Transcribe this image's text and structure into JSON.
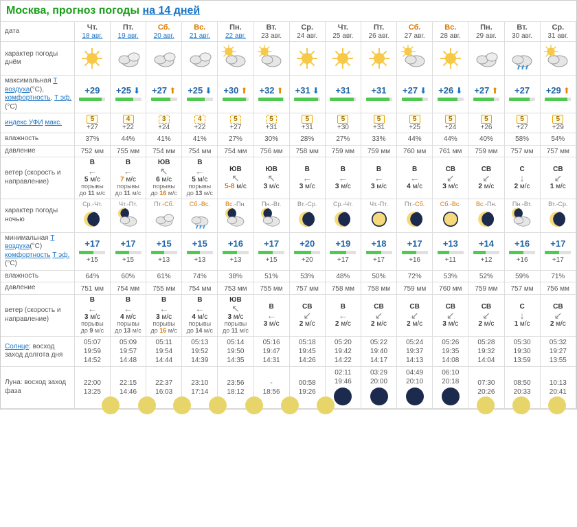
{
  "header": {
    "city": "Москва, прогноз погоды",
    "link_text": "на 14 дней"
  },
  "colors": {
    "accent_green": "#1a9e1a",
    "link_blue": "#1a75c6",
    "weekend_orange": "#d97700",
    "temp_blue": "#2265a8",
    "border": "#dddddd",
    "uvi_border": "#e2a600",
    "uvi_bg": "#fffbe6"
  },
  "row_labels": {
    "date": "дата",
    "weather_day": "характер погоды днём",
    "tmax": "максимальная <a>Т воздуха</a>(°C), <a>комфортность</a>, <a>Т эф.</a>(°C)",
    "uvi": "<a>индекс УФИ</a> <a>макс.</a>",
    "humidity": "влажность",
    "pressure": "давление",
    "wind": "ветер (скорость и направление)",
    "weather_night": "характер погоды ночью",
    "tmin": "минимальная <a>Т воздуха</a>(°C) <a>комфортность</a> <a>Т эф.</a>(°C)",
    "sun": "<a>Солнце</a>: восход заход долгота дня",
    "moon": "Луна: восход заход фаза"
  },
  "days": [
    {
      "abbr": "Чт.",
      "date": "18 авг.",
      "weekend": false,
      "linked": true,
      "icon_day": "sunny",
      "tmax": "+29",
      "tmax_arrow": "",
      "bar_day": 85,
      "uvi": "5",
      "uvi_dashed": false,
      "teff_day": "+27",
      "hum_day": "37%",
      "press_day": "752 мм",
      "wind_dir_day": "В",
      "wind_arrow_day": "←",
      "wind_speed_day": "5",
      "gust_day": "11",
      "night_label": "Ср.-Чт.",
      "icon_night": "clear-night",
      "tmin": "+17",
      "bar_night": 55,
      "teff_night": "+15",
      "hum_night": "64%",
      "press_night": "751 мм",
      "wind_dir_night": "В",
      "wind_arrow_night": "←",
      "wind_speed_night": "3",
      "gust_night": "9",
      "sun_rise": "05:07",
      "sun_set": "19:59",
      "day_len": "14:52",
      "moon_rise": "22:00",
      "moon_set": "13:25",
      "moon_phase": "wnc"
    },
    {
      "abbr": "Пт.",
      "date": "19 авг.",
      "weekend": false,
      "linked": true,
      "icon_day": "cloudy",
      "tmax": "+25",
      "tmax_arrow": "down",
      "bar_day": 70,
      "uvi": "4",
      "uvi_dashed": false,
      "teff_day": "+22",
      "hum_day": "44%",
      "press_day": "755 мм",
      "wind_dir_day": "В",
      "wind_arrow_day": "←",
      "wind_speed_day": "7",
      "wind_hl": true,
      "gust_day": "11",
      "night_label": "Чт.-Пт.",
      "icon_night": "partly-cloudy-night",
      "tmin": "+17",
      "bar_night": 55,
      "teff_night": "+15",
      "hum_night": "60%",
      "press_night": "754 мм",
      "wind_dir_night": "В",
      "wind_arrow_night": "←",
      "wind_speed_night": "4",
      "gust_night": "13",
      "sun_rise": "05:09",
      "sun_set": "19:57",
      "day_len": "14:48",
      "moon_rise": "22:15",
      "moon_set": "14:46",
      "moon_phase": "wnc"
    },
    {
      "abbr": "Сб.",
      "date": "20 авг.",
      "weekend": true,
      "linked": true,
      "icon_day": "cloudy",
      "tmax": "+27",
      "tmax_arrow": "up",
      "bar_day": 75,
      "uvi": "3",
      "uvi_dashed": true,
      "teff_day": "+24",
      "hum_day": "41%",
      "press_day": "754 мм",
      "wind_dir_day": "ЮВ",
      "wind_arrow_day": "↖",
      "wind_speed_day": "6",
      "gust_day": "16",
      "gust_hl": true,
      "night_label": "Пт.-Сб.",
      "icon_night": "overcast",
      "tmin": "+15",
      "bar_night": 50,
      "teff_night": "+13",
      "hum_night": "61%",
      "press_night": "755 мм",
      "wind_dir_night": "В",
      "wind_arrow_night": "←",
      "wind_speed_night": "3",
      "gust_night": "16",
      "gust_night_hl": true,
      "sun_rise": "05:11",
      "sun_set": "19:54",
      "day_len": "14:44",
      "moon_rise": "22:37",
      "moon_set": "16:03",
      "moon_phase": "lq"
    },
    {
      "abbr": "Вс.",
      "date": "21 авг.",
      "weekend": true,
      "linked": true,
      "icon_day": "cloudy",
      "tmax": "+25",
      "tmax_arrow": "down",
      "bar_day": 70,
      "uvi": "4",
      "uvi_dashed": true,
      "teff_day": "+22",
      "hum_day": "41%",
      "press_day": "754 мм",
      "wind_dir_day": "В",
      "wind_arrow_day": "←",
      "wind_speed_day": "5",
      "gust_day": "13",
      "night_label": "Сб.-Вс.",
      "icon_night": "rain",
      "tmin": "+15",
      "bar_night": 50,
      "teff_night": "+13",
      "hum_night": "74%",
      "press_night": "754 мм",
      "wind_dir_night": "В",
      "wind_arrow_night": "←",
      "wind_speed_night": "4",
      "gust_night": "14",
      "sun_rise": "05:13",
      "sun_set": "19:52",
      "day_len": "14:39",
      "moon_rise": "23:10",
      "moon_set": "17:14",
      "moon_phase": "lq"
    },
    {
      "abbr": "Пн.",
      "date": "22 авг.",
      "weekend": false,
      "linked": true,
      "icon_day": "partly-cloudy",
      "tmax": "+30",
      "tmax_arrow": "up",
      "bar_day": 90,
      "uvi": "5",
      "uvi_dashed": true,
      "teff_day": "+27",
      "hum_day": "27%",
      "press_day": "754 мм",
      "wind_dir_day": "ЮВ",
      "wind_arrow_day": "↖",
      "wind_speed_day": "5-8",
      "wind_hl": true,
      "gust_day": "",
      "night_label": "Вс.-Пн.",
      "icon_night": "partly-cloudy-night",
      "tmin": "+16",
      "bar_night": 55,
      "teff_night": "+13",
      "hum_night": "38%",
      "press_night": "753 мм",
      "wind_dir_night": "ЮВ",
      "wind_arrow_night": "↖",
      "wind_speed_night": "3",
      "gust_night": "11",
      "sun_rise": "05:14",
      "sun_set": "19:50",
      "day_len": "14:35",
      "moon_rise": "23:56",
      "moon_set": "18:12",
      "moon_phase": "wnc"
    },
    {
      "abbr": "Вт.",
      "date": "23 авг.",
      "weekend": false,
      "linked": false,
      "icon_day": "partly-cloudy",
      "tmax": "+32",
      "tmax_arrow": "up",
      "bar_day": 95,
      "uvi": "5",
      "uvi_dashed": true,
      "teff_day": "+31",
      "hum_day": "30%",
      "press_day": "756 мм",
      "wind_dir_day": "ЮВ",
      "wind_arrow_day": "↖",
      "wind_speed_day": "3",
      "gust_day": "",
      "night_label": "Пн.-Вт.",
      "icon_night": "partly-cloudy-night",
      "tmin": "+17",
      "bar_night": 55,
      "teff_night": "+15",
      "hum_night": "51%",
      "press_night": "755 мм",
      "wind_dir_night": "В",
      "wind_arrow_night": "←",
      "wind_speed_night": "3",
      "gust_night": "",
      "sun_rise": "05:16",
      "sun_set": "19:47",
      "day_len": "14:31",
      "moon_rise": "-",
      "moon_set": "18:56",
      "moon_phase": "wnc"
    },
    {
      "abbr": "Ср.",
      "date": "24 авг.",
      "weekend": false,
      "linked": false,
      "icon_day": "sunny",
      "tmax": "+31",
      "tmax_arrow": "down",
      "bar_day": 92,
      "uvi": "5",
      "uvi_dashed": false,
      "teff_day": "+31",
      "hum_day": "28%",
      "press_day": "758 мм",
      "wind_dir_day": "В",
      "wind_arrow_day": "←",
      "wind_speed_day": "3",
      "gust_day": "",
      "night_label": "Вт.-Ср.",
      "icon_night": "clear-night",
      "tmin": "+20",
      "bar_night": 65,
      "teff_night": "+20",
      "hum_night": "53%",
      "press_night": "757 мм",
      "wind_dir_night": "СВ",
      "wind_arrow_night": "↙",
      "wind_speed_night": "2",
      "gust_night": "",
      "sun_rise": "05:18",
      "sun_set": "19:45",
      "day_len": "14:26",
      "moon_rise": "00:58",
      "moon_set": "19:26",
      "moon_phase": "wnc"
    },
    {
      "abbr": "Чт.",
      "date": "25 авг.",
      "weekend": false,
      "linked": false,
      "icon_day": "sunny",
      "tmax": "+31",
      "tmax_arrow": "",
      "bar_day": 92,
      "uvi": "5",
      "uvi_dashed": false,
      "teff_day": "+30",
      "hum_day": "27%",
      "press_day": "759 мм",
      "wind_dir_day": "В",
      "wind_arrow_day": "←",
      "wind_speed_day": "3",
      "gust_day": "",
      "night_label": "Ср.-Чт.",
      "icon_night": "clear-night",
      "tmin": "+19",
      "bar_night": 62,
      "teff_night": "+17",
      "hum_night": "48%",
      "press_night": "758 мм",
      "wind_dir_night": "В",
      "wind_arrow_night": "←",
      "wind_speed_night": "2",
      "gust_night": "",
      "sun_rise": "05:20",
      "sun_set": "19:42",
      "day_len": "14:22",
      "moon_rise": "02:11",
      "moon_set": "19:46",
      "moon_phase": "new"
    },
    {
      "abbr": "Пт.",
      "date": "26 авг.",
      "weekend": false,
      "linked": false,
      "icon_day": "sunny",
      "tmax": "+31",
      "tmax_arrow": "",
      "bar_day": 92,
      "uvi": "5",
      "uvi_dashed": false,
      "teff_day": "+31",
      "hum_day": "33%",
      "press_day": "759 мм",
      "wind_dir_day": "В",
      "wind_arrow_day": "←",
      "wind_speed_day": "3",
      "gust_day": "",
      "night_label": "Чт.-Пт.",
      "icon_night": "clear-night-full",
      "tmin": "+18",
      "bar_night": 60,
      "teff_night": "+17",
      "hum_night": "50%",
      "press_night": "758 мм",
      "wind_dir_night": "СВ",
      "wind_arrow_night": "↙",
      "wind_speed_night": "2",
      "gust_night": "",
      "sun_rise": "05:22",
      "sun_set": "19:40",
      "day_len": "14:17",
      "moon_rise": "03:29",
      "moon_set": "20:00",
      "moon_phase": "new"
    },
    {
      "abbr": "Сб.",
      "date": "27 авг.",
      "weekend": true,
      "linked": false,
      "icon_day": "partly-sunny",
      "tmax": "+27",
      "tmax_arrow": "down",
      "bar_day": 80,
      "uvi": "5",
      "uvi_dashed": false,
      "teff_day": "+25",
      "hum_day": "44%",
      "press_day": "760 мм",
      "wind_dir_day": "В",
      "wind_arrow_day": "←",
      "wind_speed_day": "4",
      "gust_day": "",
      "night_label": "Пт.-Сб.",
      "icon_night": "clear-night",
      "tmin": "+17",
      "bar_night": 55,
      "teff_night": "+16",
      "hum_night": "72%",
      "press_night": "759 мм",
      "wind_dir_night": "СВ",
      "wind_arrow_night": "↙",
      "wind_speed_night": "2",
      "gust_night": "",
      "sun_rise": "05:24",
      "sun_set": "19:37",
      "day_len": "14:13",
      "moon_rise": "04:49",
      "moon_set": "20:10",
      "moon_phase": "new"
    },
    {
      "abbr": "Вс.",
      "date": "28 авг.",
      "weekend": true,
      "linked": false,
      "icon_day": "sunny",
      "tmax": "+26",
      "tmax_arrow": "down",
      "bar_day": 78,
      "uvi": "5",
      "uvi_dashed": false,
      "teff_day": "+24",
      "hum_day": "44%",
      "press_day": "761 мм",
      "wind_dir_day": "СВ",
      "wind_arrow_day": "↙",
      "wind_speed_day": "3",
      "gust_day": "",
      "night_label": "Сб.-Вс.",
      "icon_night": "clear-night-full",
      "tmin": "+13",
      "bar_night": 45,
      "teff_night": "+11",
      "hum_night": "53%",
      "press_night": "760 мм",
      "wind_dir_night": "СВ",
      "wind_arrow_night": "↙",
      "wind_speed_night": "3",
      "gust_night": "",
      "sun_rise": "05:26",
      "sun_set": "19:35",
      "day_len": "14:08",
      "moon_rise": "06:10",
      "moon_set": "20:18",
      "moon_phase": "new"
    },
    {
      "abbr": "Пн.",
      "date": "29 авг.",
      "weekend": false,
      "linked": false,
      "icon_day": "cloudy",
      "tmax": "+27",
      "tmax_arrow": "up",
      "bar_day": 80,
      "uvi": "5",
      "uvi_dashed": false,
      "teff_day": "+26",
      "hum_day": "40%",
      "press_day": "759 мм",
      "wind_dir_day": "СВ",
      "wind_arrow_day": "↙",
      "wind_speed_day": "2",
      "gust_day": "",
      "night_label": "Вс.-Пн.",
      "icon_night": "clear-night",
      "tmin": "+14",
      "bar_night": 48,
      "teff_night": "+12",
      "hum_night": "52%",
      "press_night": "759 мм",
      "wind_dir_night": "СВ",
      "wind_arrow_night": "↙",
      "wind_speed_night": "2",
      "gust_night": "",
      "sun_rise": "05:28",
      "sun_set": "19:32",
      "day_len": "14:04",
      "moon_rise": "07:30",
      "moon_set": "20:26",
      "moon_phase": "wxc"
    },
    {
      "abbr": "Вт.",
      "date": "30 авг.",
      "weekend": false,
      "linked": false,
      "icon_day": "rain",
      "tmax": "+27",
      "tmax_arrow": "",
      "bar_day": 80,
      "uvi": "5",
      "uvi_dashed": false,
      "teff_day": "+27",
      "hum_day": "58%",
      "press_day": "757 мм",
      "wind_dir_day": "С",
      "wind_arrow_day": "↓",
      "wind_speed_day": "2",
      "gust_day": "",
      "night_label": "Пн.-Вт.",
      "icon_night": "partly-cloudy-night",
      "tmin": "+16",
      "bar_night": 55,
      "teff_night": "+16",
      "hum_night": "59%",
      "press_night": "757 мм",
      "wind_dir_night": "С",
      "wind_arrow_night": "↓",
      "wind_speed_night": "1",
      "gust_night": "",
      "sun_rise": "05:30",
      "sun_set": "19:30",
      "day_len": "13:59",
      "moon_rise": "08:50",
      "moon_set": "20:33",
      "moon_phase": "wxc"
    },
    {
      "abbr": "Ср.",
      "date": "31 авг.",
      "weekend": false,
      "linked": false,
      "icon_day": "partly-sunny",
      "tmax": "+29",
      "tmax_arrow": "up",
      "bar_day": 85,
      "uvi": "5",
      "uvi_dashed": false,
      "teff_day": "+29",
      "hum_day": "54%",
      "press_day": "757 мм",
      "wind_dir_day": "СВ",
      "wind_arrow_day": "↙",
      "wind_speed_day": "1",
      "gust_day": "",
      "night_label": "Вт.-Ср.",
      "icon_night": "clear-night",
      "tmin": "+17",
      "bar_night": 55,
      "teff_night": "+17",
      "hum_night": "71%",
      "press_night": "756 мм",
      "wind_dir_night": "СВ",
      "wind_arrow_night": "↙",
      "wind_speed_night": "2",
      "gust_night": "",
      "sun_rise": "05:32",
      "sun_set": "19:27",
      "day_len": "13:55",
      "moon_rise": "10:13",
      "moon_set": "20:41",
      "moon_phase": "wxc"
    }
  ]
}
